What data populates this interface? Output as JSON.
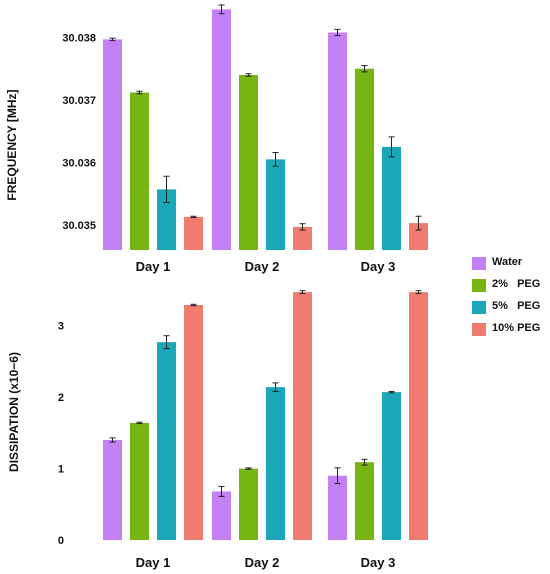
{
  "chart_data": [
    {
      "type": "bar",
      "ylabel": "FREQUENCY [MHz]",
      "categories": [
        "Day 1",
        "Day 2",
        "Day 3"
      ],
      "ylim": [
        30.0346,
        30.0386
      ],
      "yticks": [
        30.035,
        30.036,
        30.037,
        30.038
      ],
      "ytick_labels": [
        "30.035",
        "30.036",
        "30.037",
        "30.038"
      ],
      "series": [
        {
          "name": "Water",
          "values": [
            30.03797,
            30.03845,
            30.03808
          ],
          "errors": [
            2e-05,
            7e-05,
            5e-05
          ]
        },
        {
          "name": "2% PEG",
          "values": [
            30.03712,
            30.0374,
            30.0375
          ],
          "errors": [
            2e-05,
            2e-05,
            5e-05
          ]
        },
        {
          "name": "5% PEG",
          "values": [
            30.03557,
            30.03605,
            30.03625
          ],
          "errors": [
            0.00021,
            0.00011,
            0.00016
          ]
        },
        {
          "name": "10% PEG",
          "values": [
            30.03513,
            30.03497,
            30.03503
          ],
          "errors": [
            1e-05,
            5e-05,
            0.00011
          ]
        }
      ]
    },
    {
      "type": "bar",
      "ylabel": "DISSIPATION (x10−6)",
      "categories": [
        "Day 1",
        "Day 2",
        "Day 3"
      ],
      "ylim": [
        0,
        3.5
      ],
      "yticks": [
        0,
        1,
        2,
        3
      ],
      "ytick_labels": [
        "0",
        "1",
        "2",
        "3"
      ],
      "series": [
        {
          "name": "Water",
          "values": [
            1.4,
            0.68,
            0.9
          ],
          "errors": [
            0.03,
            0.07,
            0.11
          ]
        },
        {
          "name": "2% PEG",
          "values": [
            1.64,
            1.0,
            1.09
          ],
          "errors": [
            0.01,
            0.01,
            0.04
          ]
        },
        {
          "name": "5% PEG",
          "values": [
            2.77,
            2.14,
            2.07
          ],
          "errors": [
            0.09,
            0.06,
            0.01
          ]
        },
        {
          "name": "10% PEG",
          "values": [
            3.29,
            3.47,
            3.47
          ],
          "errors": [
            0.01,
            0.02,
            0.02
          ]
        }
      ]
    }
  ],
  "legend": {
    "items": [
      {
        "label": "Water",
        "color": "#c381f5"
      },
      {
        "label": "2%   PEG",
        "color": "#76b514"
      },
      {
        "label": "5%   PEG",
        "color": "#1aa8b8"
      },
      {
        "label": "10% PEG",
        "color": "#f07b6f"
      }
    ]
  }
}
